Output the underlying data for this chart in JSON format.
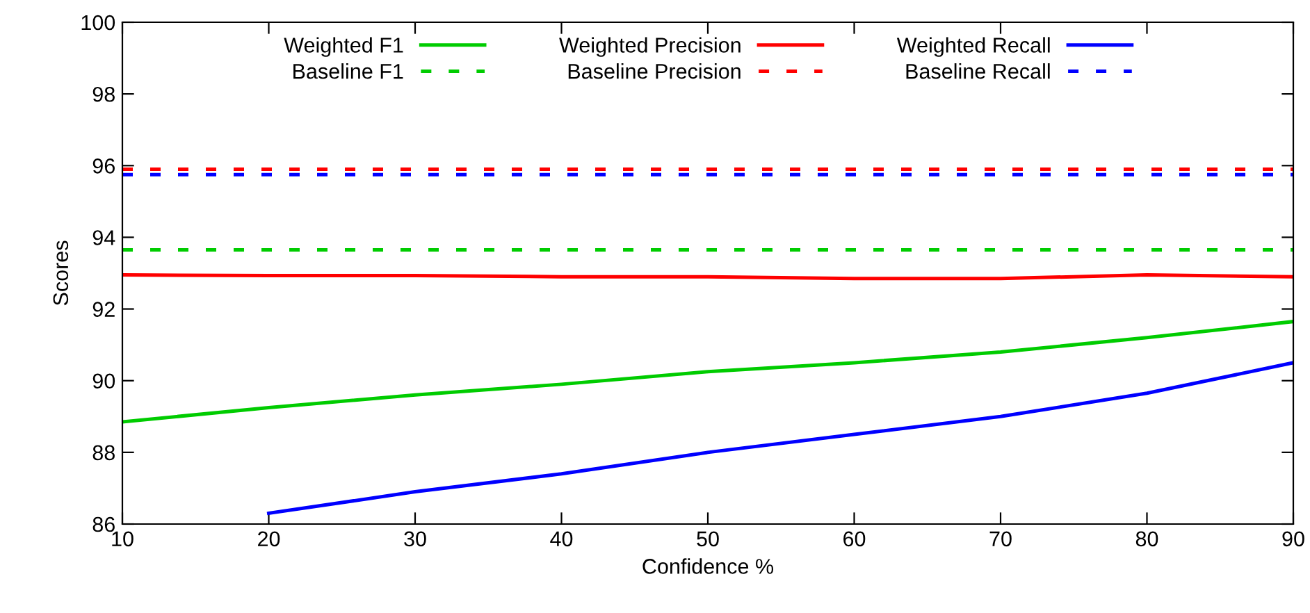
{
  "chart_data": {
    "type": "line",
    "xlabel": "Confidence %",
    "ylabel": "Scores",
    "x": [
      10,
      20,
      30,
      40,
      50,
      60,
      70,
      80,
      90
    ],
    "series": [
      {
        "name": "Weighted F1",
        "color": "#00cc00",
        "line_style": "solid",
        "values": [
          88.85,
          89.25,
          89.6,
          89.9,
          90.25,
          90.5,
          90.8,
          91.2,
          91.65
        ]
      },
      {
        "name": "Baseline F1",
        "color": "#00cc00",
        "line_style": "dashed",
        "values": [
          93.65,
          93.65,
          93.65,
          93.65,
          93.65,
          93.65,
          93.65,
          93.65,
          93.65
        ]
      },
      {
        "name": "Weighted Precision",
        "color": "#ff0000",
        "line_style": "solid",
        "values": [
          92.95,
          92.93,
          92.93,
          92.9,
          92.9,
          92.85,
          92.85,
          92.95,
          92.9
        ]
      },
      {
        "name": "Baseline Precision",
        "color": "#ff0000",
        "line_style": "dashed",
        "values": [
          95.9,
          95.9,
          95.9,
          95.9,
          95.9,
          95.9,
          95.9,
          95.9,
          95.9
        ]
      },
      {
        "name": "Weighted Recall",
        "color": "#0000ff",
        "line_style": "solid",
        "values": [
          null,
          86.3,
          86.9,
          87.4,
          88.0,
          88.5,
          89.0,
          89.65,
          90.5
        ]
      },
      {
        "name": "Baseline Recall",
        "color": "#0000ff",
        "line_style": "dashed",
        "values": [
          95.75,
          95.75,
          95.75,
          95.75,
          95.75,
          95.75,
          95.75,
          95.75,
          95.75
        ]
      }
    ],
    "xlim": [
      10,
      90
    ],
    "xticks": [
      10,
      20,
      30,
      40,
      50,
      60,
      70,
      80,
      90
    ],
    "ylim": [
      86,
      100
    ],
    "yticks": [
      86,
      88,
      90,
      92,
      94,
      96,
      98,
      100
    ],
    "grid": false,
    "legend": "top",
    "marker": "none"
  }
}
